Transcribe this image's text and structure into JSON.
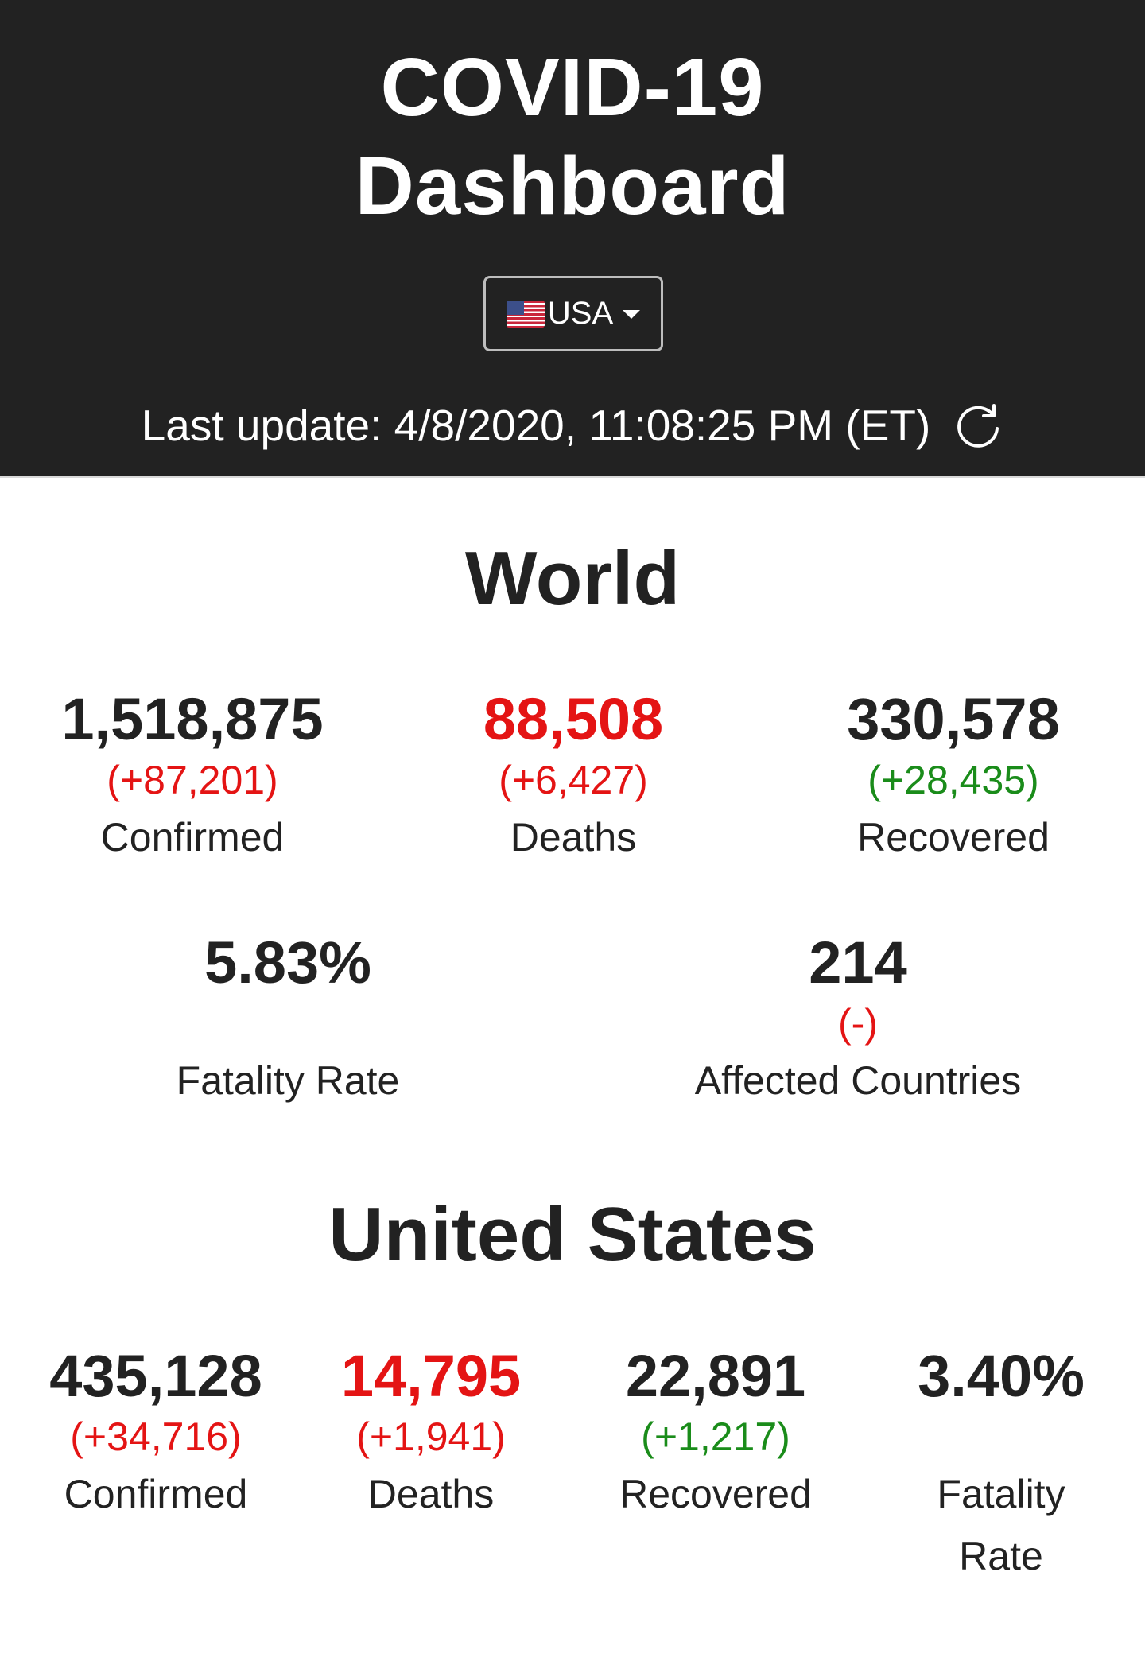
{
  "header": {
    "title_line1": "COVID-19",
    "title_line2": "Dashboard",
    "country_selector": {
      "flag_icon": "us-flag-icon",
      "label": "USA"
    },
    "last_update": "Last update: 4/8/2020, 11:08:25 PM (ET)"
  },
  "world": {
    "title": "World",
    "confirmed": {
      "value": "1,518,875",
      "delta": "(+87,201)",
      "label": "Confirmed"
    },
    "deaths": {
      "value": "88,508",
      "delta": "(+6,427)",
      "label": "Deaths"
    },
    "recovered": {
      "value": "330,578",
      "delta": "(+28,435)",
      "label": "Recovered"
    },
    "fatality_rate": {
      "value": "5.83%",
      "label": "Fatality Rate"
    },
    "affected_countries": {
      "value": "214",
      "delta": "(-)",
      "label": "Affected Countries"
    }
  },
  "us": {
    "title": "United States",
    "confirmed": {
      "value": "435,128",
      "delta": "(+34,716)",
      "label": "Confirmed"
    },
    "deaths": {
      "value": "14,795",
      "delta": "(+1,941)",
      "label": "Deaths"
    },
    "recovered": {
      "value": "22,891",
      "delta": "(+1,217)",
      "label": "Recovered"
    },
    "fatality_rate": {
      "value": "3.40%",
      "label_line1": "Fatality",
      "label_line2": "Rate"
    }
  },
  "colors": {
    "header_bg": "#222222",
    "negative": "#e41414",
    "positive": "#1a8c1a"
  }
}
